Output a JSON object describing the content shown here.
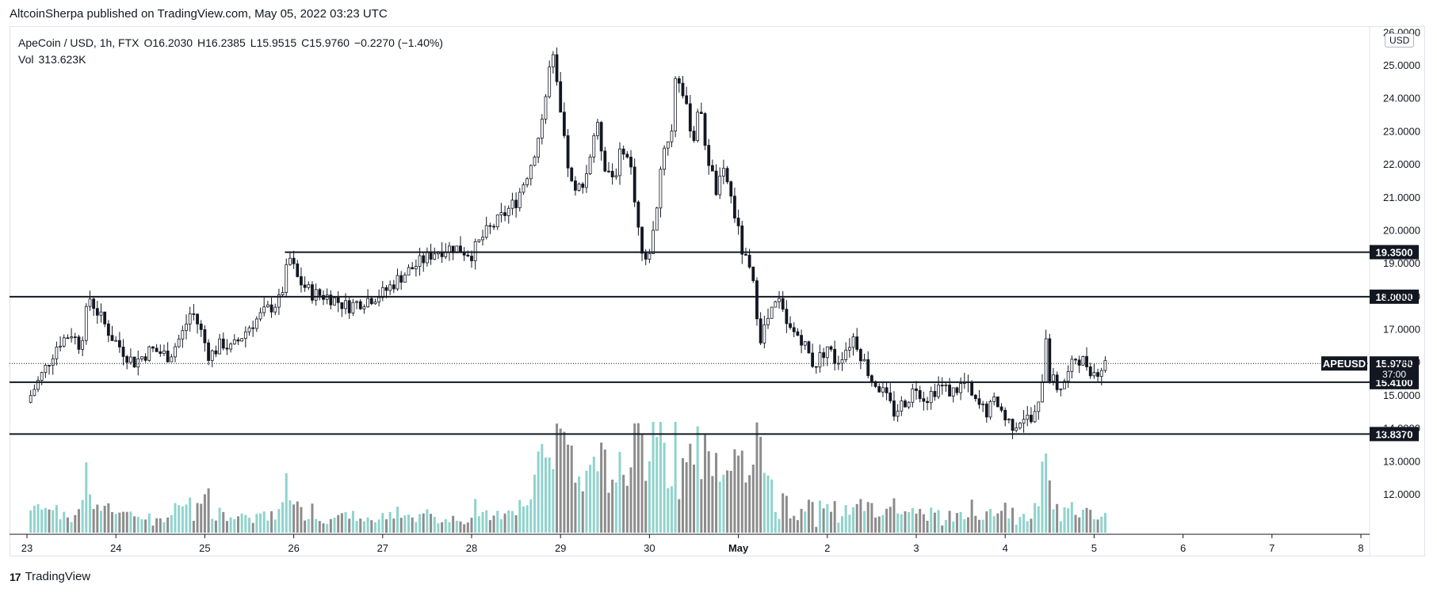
{
  "publisher": "AltcoinSherpa published on TradingView.com, May 05, 2022 03:23 UTC",
  "legend": {
    "symbol": "ApeCoin / USD, 1h, FTX",
    "open_label": "O",
    "open": "16.2030",
    "high_label": "H",
    "high": "16.2385",
    "low_label": "L",
    "low": "15.9515",
    "close_label": "C",
    "close": "15.9760",
    "change": "−0.2270 (−1.40%)",
    "vol_label": "Vol",
    "vol": "313.623K"
  },
  "currency_badge": "USD",
  "footer": {
    "logo_text": "TradingView"
  },
  "colors": {
    "up": "#ffffff",
    "down": "#131722",
    "vol_up": "#8fd3cc",
    "vol_down": "#8c8c8c",
    "level": "#131722"
  },
  "chart_data": {
    "type": "candlestick",
    "title": "",
    "xlabel": "",
    "ylabel": "",
    "ylim": [
      10.8,
      26.2
    ],
    "x_ticks": [
      "23",
      "24",
      "25",
      "26",
      "27",
      "28",
      "29",
      "30",
      "May",
      "2",
      "3",
      "4",
      "5",
      "6",
      "7",
      "8"
    ],
    "y_ticks": [
      "12.0000",
      "13.0000",
      "14.0000",
      "15.0000",
      "16.0000",
      "17.0000",
      "18.0000",
      "19.0000",
      "20.0000",
      "21.0000",
      "22.0000",
      "23.0000",
      "24.0000",
      "25.0000",
      "26.0000"
    ],
    "horizontal_levels": [
      {
        "label": "19.3500",
        "value": 19.35,
        "start_day": 2.9
      },
      {
        "label": "18.0000",
        "value": 18.0,
        "start_day": -0.2
      },
      {
        "label": "15.4100",
        "value": 15.41,
        "start_day": -0.2
      },
      {
        "label": "13.8370",
        "value": 13.837,
        "start_day": -0.2
      }
    ],
    "last_price": {
      "label": "APEUSD",
      "value": "15.9760",
      "countdown": "37:00"
    },
    "volume_peak": 1.0,
    "close_path": [
      [
        0.0,
        14.8
      ],
      [
        0.2,
        15.8
      ],
      [
        0.35,
        16.6
      ],
      [
        0.5,
        16.9
      ],
      [
        0.6,
        16.5
      ],
      [
        0.7,
        18.0
      ],
      [
        0.8,
        17.5
      ],
      [
        0.95,
        16.8
      ],
      [
        1.1,
        16.3
      ],
      [
        1.2,
        16.0
      ],
      [
        1.4,
        16.4
      ],
      [
        1.6,
        16.2
      ],
      [
        1.75,
        16.9
      ],
      [
        1.85,
        17.6
      ],
      [
        1.95,
        17.0
      ],
      [
        2.05,
        16.2
      ],
      [
        2.2,
        16.6
      ],
      [
        2.3,
        16.4
      ],
      [
        2.5,
        17.1
      ],
      [
        2.7,
        17.6
      ],
      [
        2.85,
        17.9
      ],
      [
        2.95,
        19.2
      ],
      [
        3.05,
        18.5
      ],
      [
        3.2,
        18.1
      ],
      [
        3.4,
        18.0
      ],
      [
        3.6,
        17.7
      ],
      [
        3.8,
        17.9
      ],
      [
        4.0,
        18.1
      ],
      [
        4.2,
        18.6
      ],
      [
        4.4,
        19.0
      ],
      [
        4.6,
        19.4
      ],
      [
        4.8,
        19.5
      ],
      [
        5.0,
        19.3
      ],
      [
        5.15,
        19.9
      ],
      [
        5.3,
        20.3
      ],
      [
        5.5,
        20.9
      ],
      [
        5.65,
        21.9
      ],
      [
        5.75,
        22.8
      ],
      [
        5.85,
        24.3
      ],
      [
        5.9,
        25.5
      ],
      [
        5.95,
        24.5
      ],
      [
        6.05,
        22.5
      ],
      [
        6.15,
        21.0
      ],
      [
        6.3,
        21.8
      ],
      [
        6.4,
        23.3
      ],
      [
        6.5,
        22.0
      ],
      [
        6.6,
        21.6
      ],
      [
        6.7,
        22.6
      ],
      [
        6.8,
        21.8
      ],
      [
        6.9,
        19.5
      ],
      [
        6.95,
        18.9
      ],
      [
        7.05,
        20.0
      ],
      [
        7.15,
        22.5
      ],
      [
        7.25,
        23.0
      ],
      [
        7.3,
        25.0
      ],
      [
        7.4,
        23.8
      ],
      [
        7.5,
        22.8
      ],
      [
        7.55,
        23.9
      ],
      [
        7.65,
        22.3
      ],
      [
        7.75,
        21.2
      ],
      [
        7.85,
        21.8
      ],
      [
        7.95,
        20.6
      ],
      [
        8.05,
        19.3
      ],
      [
        8.15,
        18.6
      ],
      [
        8.25,
        16.8
      ],
      [
        8.35,
        17.4
      ],
      [
        8.45,
        17.9
      ],
      [
        8.55,
        17.0
      ],
      [
        8.7,
        16.8
      ],
      [
        8.85,
        15.9
      ],
      [
        9.0,
        16.5
      ],
      [
        9.1,
        16.0
      ],
      [
        9.2,
        16.4
      ],
      [
        9.3,
        16.8
      ],
      [
        9.4,
        16.1
      ],
      [
        9.5,
        15.5
      ],
      [
        9.6,
        15.2
      ],
      [
        9.75,
        14.5
      ],
      [
        9.9,
        14.9
      ],
      [
        10.0,
        15.3
      ],
      [
        10.1,
        14.9
      ],
      [
        10.25,
        15.3
      ],
      [
        10.4,
        15.1
      ],
      [
        10.55,
        15.4
      ],
      [
        10.65,
        14.8
      ],
      [
        10.8,
        14.5
      ],
      [
        10.9,
        14.9
      ],
      [
        11.0,
        14.3
      ],
      [
        11.1,
        14.1
      ],
      [
        11.2,
        14.4
      ],
      [
        11.3,
        14.2
      ],
      [
        11.4,
        14.8
      ],
      [
        11.45,
        17.1
      ],
      [
        11.5,
        15.6
      ],
      [
        11.6,
        15.2
      ],
      [
        11.7,
        15.6
      ],
      [
        11.8,
        16.2
      ],
      [
        11.9,
        16.0
      ],
      [
        12.0,
        15.7
      ],
      [
        12.1,
        15.9
      ],
      [
        12.13,
        15.98
      ]
    ]
  }
}
